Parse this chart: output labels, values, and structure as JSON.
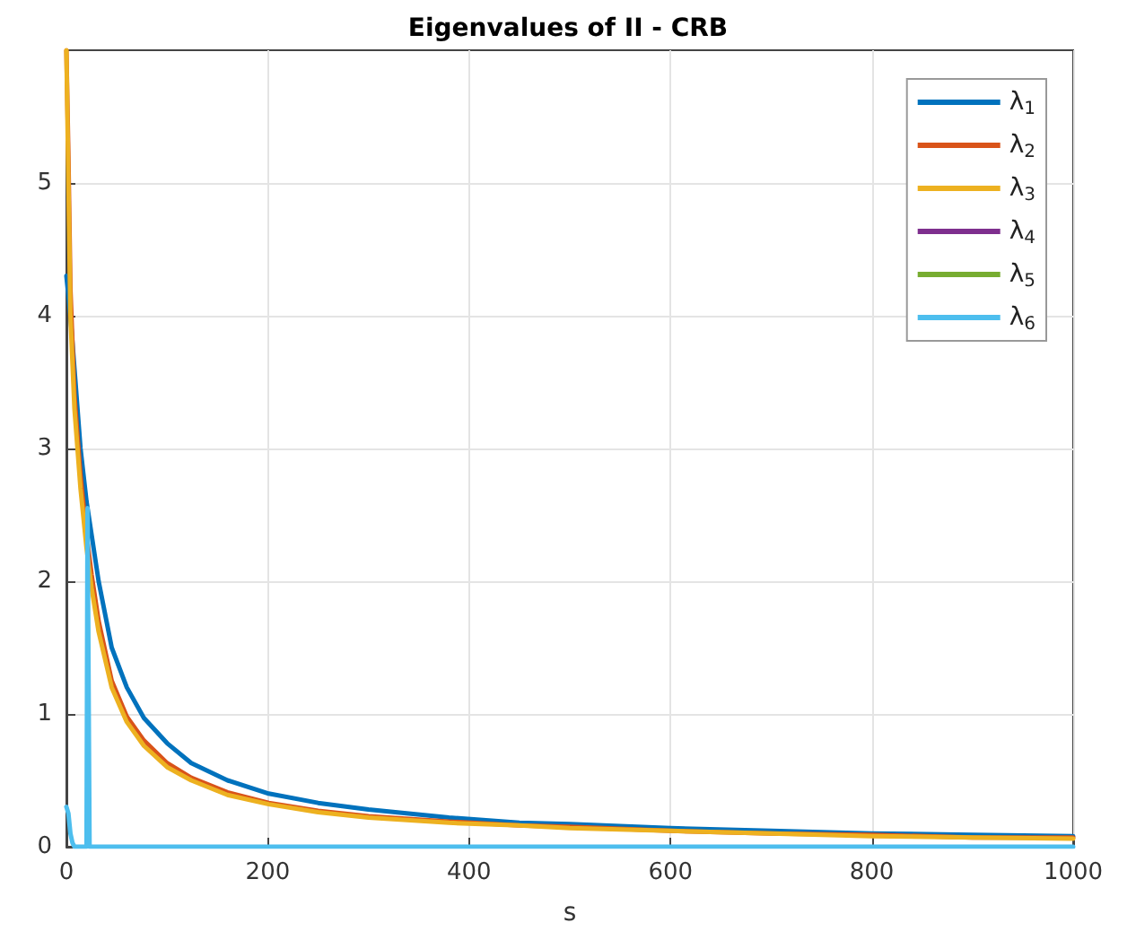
{
  "chart_data": {
    "type": "line",
    "title": "Eigenvalues of II - CRB",
    "xlabel": "s",
    "xlim": [
      0,
      1000
    ],
    "xticks": [
      0,
      200,
      400,
      600,
      800,
      1000
    ],
    "ylim": [
      0,
      6
    ],
    "yticks": [
      0,
      1,
      2,
      3,
      4,
      5
    ],
    "grid": true,
    "legend": "top right",
    "marker": "none",
    "line_style": "solid",
    "x": [
      0,
      2,
      4,
      8,
      14,
      20,
      25,
      32,
      45,
      60,
      77,
      100,
      124,
      160,
      201,
      250,
      300,
      380,
      450,
      500,
      600,
      700,
      800,
      900,
      1000
    ],
    "series": [
      {
        "name": "λ$_{1}$",
        "color": "#0072bd",
        "values": [
          4.3,
          4.15,
          4.0,
          3.6,
          3.0,
          2.6,
          2.35,
          2.0,
          1.5,
          1.2,
          0.97,
          0.78,
          0.63,
          0.5,
          0.4,
          0.33,
          0.28,
          0.22,
          0.18,
          0.17,
          0.14,
          0.12,
          0.1,
          0.09,
          0.08
        ]
      },
      {
        "name": "λ$_{2}$",
        "color": "#d95319",
        "values": [
          6,
          5.2,
          4.2,
          3.4,
          2.8,
          2.35,
          2.05,
          1.7,
          1.25,
          0.98,
          0.8,
          0.63,
          0.52,
          0.41,
          0.33,
          0.27,
          0.23,
          0.19,
          0.16,
          0.15,
          0.12,
          0.1,
          0.09,
          0.07,
          0.07
        ]
      },
      {
        "name": "λ$_{3}$",
        "color": "#edb120",
        "values": [
          6,
          5.0,
          4.0,
          3.3,
          2.7,
          2.25,
          1.95,
          1.62,
          1.2,
          0.94,
          0.76,
          0.6,
          0.5,
          0.39,
          0.32,
          0.26,
          0.22,
          0.18,
          0.16,
          0.14,
          0.12,
          0.1,
          0.08,
          0.07,
          0.06
        ]
      },
      {
        "name": "λ$_{4}$",
        "color": "#7e2f8e",
        "values": [
          null,
          null,
          null,
          null,
          null,
          null,
          null,
          null,
          null,
          null,
          null,
          null,
          null,
          null,
          null,
          null,
          null,
          null,
          null,
          null,
          null,
          null,
          null,
          null,
          null
        ]
      },
      {
        "name": "λ$_{5}$",
        "color": "#77ac30",
        "values": [
          null,
          null,
          null,
          null,
          null,
          null,
          null,
          null,
          null,
          null,
          null,
          null,
          null,
          null,
          null,
          null,
          null,
          null,
          null,
          null,
          null,
          null,
          null,
          null,
          null
        ]
      },
      {
        "name": "λ$_{6}$",
        "color": "#4dbeee",
        "x": [
          0,
          2,
          4,
          6,
          8,
          20,
          21,
          22,
          23,
          30,
          1000
        ],
        "values": [
          0.3,
          0.25,
          0.1,
          0.03,
          0,
          0,
          2.55,
          2.55,
          0,
          0,
          0
        ]
      }
    ]
  }
}
